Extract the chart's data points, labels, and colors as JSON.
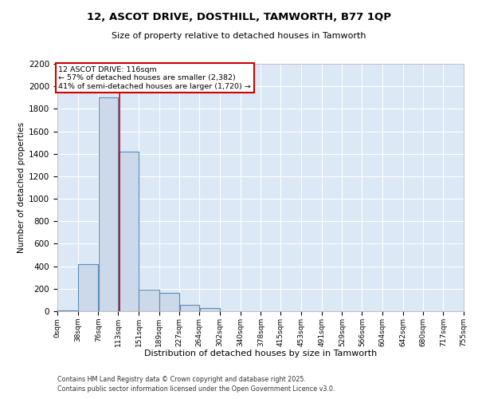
{
  "title_line1": "12, ASCOT DRIVE, DOSTHILL, TAMWORTH, B77 1QP",
  "title_line2": "Size of property relative to detached houses in Tamworth",
  "xlabel": "Distribution of detached houses by size in Tamworth",
  "ylabel": "Number of detached properties",
  "annotation_line1": "12 ASCOT DRIVE: 116sqm",
  "annotation_line2": "← 57% of detached houses are smaller (2,382)",
  "annotation_line3": "41% of semi-detached houses are larger (1,720) →",
  "footer_line1": "Contains HM Land Registry data © Crown copyright and database right 2025.",
  "footer_line2": "Contains public sector information licensed under the Open Government Licence v3.0.",
  "bin_edges": [
    0,
    38,
    76,
    113,
    151,
    189,
    227,
    264,
    302,
    340,
    378,
    415,
    453,
    491,
    529,
    566,
    604,
    642,
    680,
    717,
    755
  ],
  "bin_labels": [
    "0sqm",
    "38sqm",
    "76sqm",
    "113sqm",
    "151sqm",
    "189sqm",
    "227sqm",
    "264sqm",
    "302sqm",
    "340sqm",
    "378sqm",
    "415sqm",
    "453sqm",
    "491sqm",
    "529sqm",
    "566sqm",
    "604sqm",
    "642sqm",
    "680sqm",
    "717sqm",
    "755sqm"
  ],
  "bar_heights": [
    6,
    420,
    1900,
    1420,
    195,
    165,
    60,
    30,
    0,
    0,
    0,
    0,
    0,
    0,
    0,
    0,
    0,
    0,
    0,
    0
  ],
  "bar_color": "#ccd9ea",
  "bar_edge_color": "#5b8db8",
  "property_line_x": 116,
  "property_line_color": "#cc0000",
  "annotation_box_color": "#cc0000",
  "background_color": "#dce8f5",
  "grid_color": "#ffffff",
  "ylim": [
    0,
    2200
  ],
  "yticks": [
    0,
    200,
    400,
    600,
    800,
    1000,
    1200,
    1400,
    1600,
    1800,
    2000,
    2200
  ],
  "xlim": [
    0,
    755
  ]
}
